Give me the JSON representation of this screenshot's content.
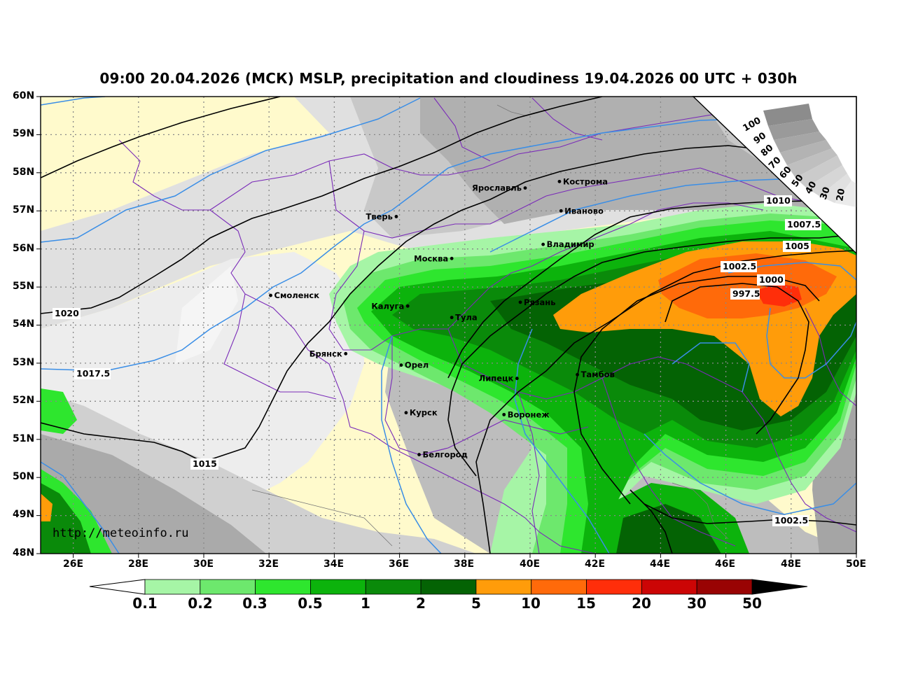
{
  "title": "09:00 20.04.2026 (МСК) MSLP, precipitation and cloudiness 19.04.2026 00 UTC + 030h",
  "watermark": "http://meteoinfo.ru",
  "lat_labels": [
    "60N",
    "59N",
    "58N",
    "57N",
    "56N",
    "55N",
    "54N",
    "53N",
    "52N",
    "51N",
    "50N",
    "49N",
    "48N"
  ],
  "lon_labels": [
    "26E",
    "28E",
    "30E",
    "32E",
    "34E",
    "36E",
    "38E",
    "40E",
    "42E",
    "44E",
    "46E",
    "48E",
    "50E"
  ],
  "cities": [
    {
      "name": "Кострома",
      "lon": 40.9,
      "lat": 57.77
    },
    {
      "name": "Ярославль",
      "lon": 39.85,
      "lat": 57.6
    },
    {
      "name": "Иваново",
      "lon": 40.95,
      "lat": 57.0
    },
    {
      "name": "Тверь",
      "lon": 35.9,
      "lat": 56.85
    },
    {
      "name": "Владимир",
      "lon": 40.4,
      "lat": 56.12
    },
    {
      "name": "Москва",
      "lon": 37.6,
      "lat": 55.75
    },
    {
      "name": "Смоленск",
      "lon": 32.05,
      "lat": 54.78
    },
    {
      "name": "Калуга",
      "lon": 36.25,
      "lat": 54.5
    },
    {
      "name": "Рязань",
      "lon": 39.7,
      "lat": 54.6
    },
    {
      "name": "Тула",
      "lon": 37.6,
      "lat": 54.2
    },
    {
      "name": "Брянск",
      "lon": 34.35,
      "lat": 53.25
    },
    {
      "name": "Орел",
      "lon": 36.05,
      "lat": 52.95
    },
    {
      "name": "Липецк",
      "lon": 39.6,
      "lat": 52.6
    },
    {
      "name": "Тамбов",
      "lon": 41.45,
      "lat": 52.7
    },
    {
      "name": "Курск",
      "lon": 36.2,
      "lat": 51.7
    },
    {
      "name": "Воронеж",
      "lon": 39.2,
      "lat": 51.65
    },
    {
      "name": "Белгород",
      "lon": 36.6,
      "lat": 50.6
    }
  ],
  "isobar_labels": [
    "1020",
    "1017.5",
    "1015",
    "1010",
    "1007.5",
    "1005",
    "1002.5",
    "1000",
    "997.5",
    "1002.5"
  ],
  "cloudiness_scale": {
    "labels": [
      "100",
      "90",
      "80",
      "70",
      "60",
      "50",
      "40",
      "30",
      "20"
    ]
  },
  "colorbar": {
    "labels": [
      "0.1",
      "0.2",
      "0.3",
      "0.5",
      "1",
      "2",
      "5",
      "10",
      "15",
      "20",
      "30",
      "50"
    ],
    "colors": [
      "#ffffff",
      "#a6f5a6",
      "#6de86d",
      "#2ee62e",
      "#0cb30c",
      "#0a8a0a",
      "#046304",
      "#ff9c0a",
      "#ff6a0a",
      "#ff2e0a",
      "#cc0505",
      "#990303",
      "#000000"
    ]
  }
}
